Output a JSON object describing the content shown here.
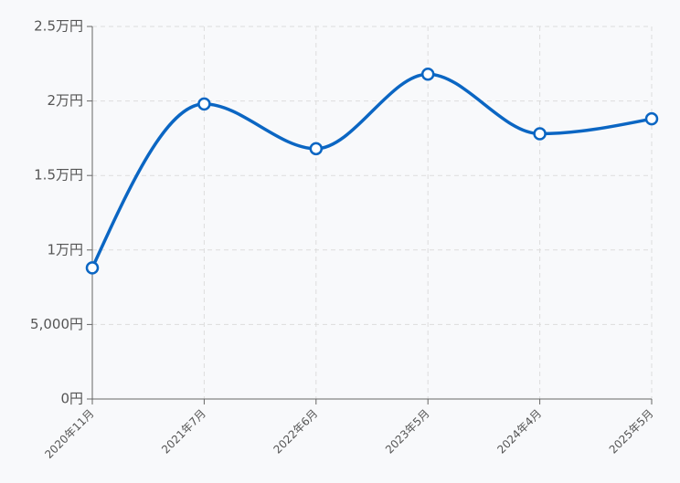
{
  "chart_data": {
    "type": "line",
    "categories": [
      "2020年11月",
      "2021年7月",
      "2022年6月",
      "2023年5月",
      "2024年4月",
      "2025年5月"
    ],
    "series": [
      {
        "color": "#0b66c3",
        "values": [
          8800,
          19800,
          16800,
          21800,
          17800,
          18800
        ]
      }
    ],
    "ylim": [
      0,
      25000
    ],
    "yticks": [
      {
        "value": 0,
        "label": "0円"
      },
      {
        "value": 5000,
        "label": "5,000円"
      },
      {
        "value": 10000,
        "label": "1万円"
      },
      {
        "value": 15000,
        "label": "1.5万円"
      },
      {
        "value": 20000,
        "label": "2万円"
      },
      {
        "value": 25000,
        "label": "2.5万円"
      }
    ],
    "grid": true
  }
}
